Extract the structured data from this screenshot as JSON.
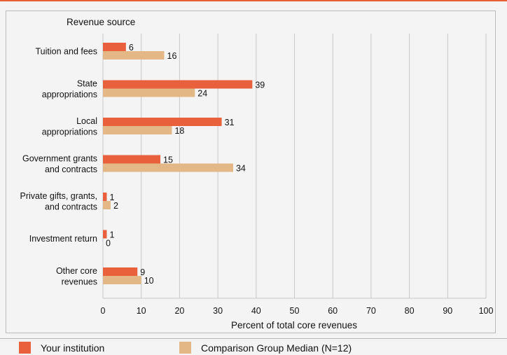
{
  "chart_data": {
    "type": "bar",
    "orientation": "horizontal",
    "title": "Revenue source",
    "xlabel": "Percent of total core revenues",
    "xlim": [
      0,
      100
    ],
    "xticks": [
      0,
      10,
      20,
      30,
      40,
      50,
      60,
      70,
      80,
      90,
      100
    ],
    "grid": true,
    "legend_position": "bottom",
    "categories": [
      [
        "Tuition and fees"
      ],
      [
        "State",
        "appropriations"
      ],
      [
        "Local",
        "appropriations"
      ],
      [
        "Government grants",
        "and contracts"
      ],
      [
        "Private gifts, grants,",
        "and contracts"
      ],
      [
        "Investment return"
      ],
      [
        "Other core",
        "revenues"
      ]
    ],
    "series": [
      {
        "name": "Your institution",
        "color": "#e8603c",
        "values": [
          6,
          39,
          31,
          15,
          1,
          1,
          9
        ]
      },
      {
        "name": "Comparison Group Median (N=12)",
        "color": "#e3b886",
        "values": [
          16,
          24,
          18,
          34,
          2,
          0,
          10
        ]
      }
    ]
  }
}
